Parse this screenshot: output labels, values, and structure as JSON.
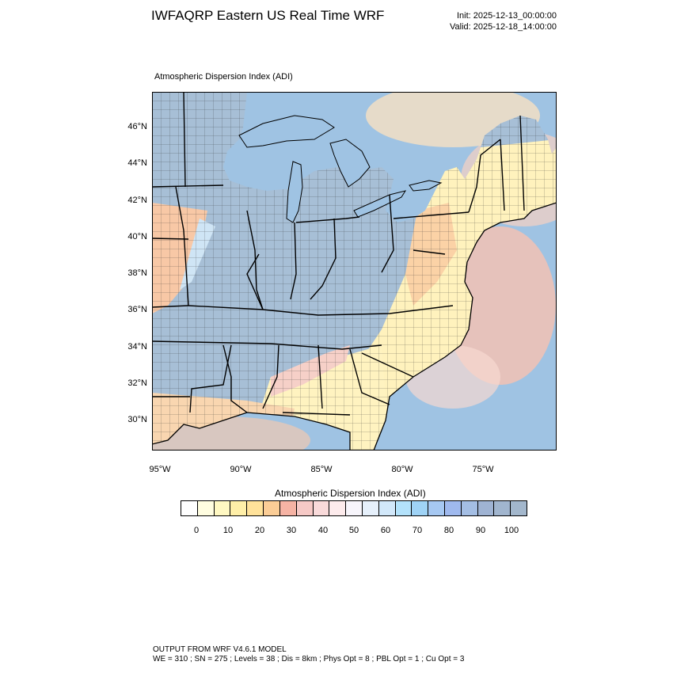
{
  "header": {
    "title": "IWFAQRP Eastern US Real Time WRF",
    "init": "Init: 2025-12-13_00:00:00",
    "valid": "Valid: 2025-12-18_14:00:00"
  },
  "plot": {
    "subtitle": "Atmospheric Dispersion Index   (ADI)",
    "lat_labels": [
      "46°N",
      "44°N",
      "42°N",
      "40°N",
      "38°N",
      "36°N",
      "34°N",
      "32°N",
      "30°N"
    ],
    "lon_labels": [
      "95°W",
      "90°W",
      "85°W",
      "80°W",
      "75°W"
    ]
  },
  "colorbar": {
    "title": "Atmospheric Dispersion Index  (ADI)",
    "tick_labels": [
      "0",
      "10",
      "20",
      "30",
      "40",
      "50",
      "60",
      "70",
      "80",
      "90",
      "100"
    ],
    "colors": [
      "#ffffff",
      "#fffde0",
      "#fff8c2",
      "#ffefa8",
      "#ffe29a",
      "#fbcd96",
      "#f6b3a4",
      "#f6c9c6",
      "#f9dada",
      "#fdebec",
      "#f7f5fb",
      "#e6f0fb",
      "#d2e8fa",
      "#b3e2fb",
      "#9fd3f6",
      "#a6c8f2",
      "#9fb9ee",
      "#a4bee4",
      "#9fb3d3",
      "#a1b5ce",
      "#a3b7cc"
    ]
  },
  "footer": {
    "line1": "OUTPUT FROM WRF V4.6.1 MODEL",
    "line2": "WE = 310 ; SN = 275 ; Levels = 38 ; Dis = 8km ; Phys Opt = 8 ; PBL Opt = 1 ; Cu Opt = 3"
  }
}
